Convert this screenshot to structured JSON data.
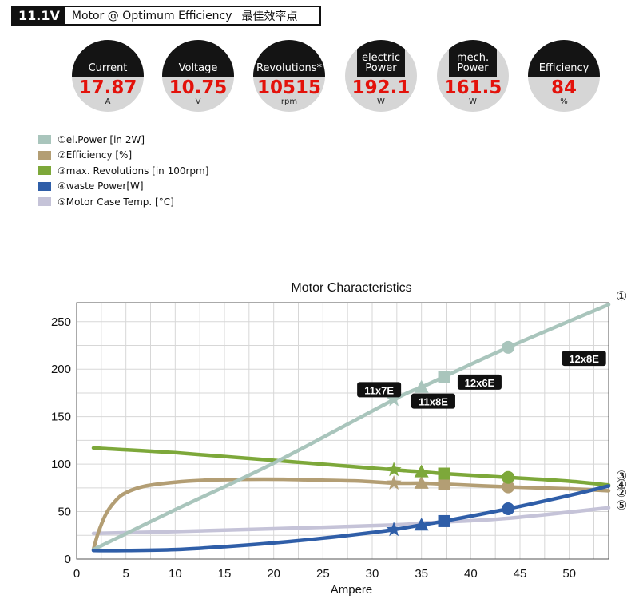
{
  "header": {
    "voltage": "11.1V",
    "title": "Motor @ Optimum Efficiency",
    "title_cn": "最佳效率点"
  },
  "gauges": [
    {
      "label": "Current",
      "value": "17.87",
      "unit": "A"
    },
    {
      "label": "Voltage",
      "value": "10.75",
      "unit": "V"
    },
    {
      "label": "Revolutions*",
      "value": "10515",
      "unit": "rpm"
    },
    {
      "label": "electric Power",
      "value": "192.1",
      "unit": "W"
    },
    {
      "label": "mech. Power",
      "value": "161.5",
      "unit": "W"
    },
    {
      "label": "Efficiency",
      "value": "84",
      "unit": "%"
    }
  ],
  "legend": [
    {
      "label": "①el.Power [in 2W]",
      "color": "#a9c5bc"
    },
    {
      "label": "②Efficiency [%]",
      "color": "#b39e74"
    },
    {
      "label": "③max. Revolutions [in 100rpm]",
      "color": "#7da83a"
    },
    {
      "label": "④waste Power[W]",
      "color": "#2f5ea8"
    },
    {
      "label": "⑤Motor Case Temp. [°C]",
      "color": "#c5c3d8"
    }
  ],
  "chart_data": {
    "type": "line",
    "title": "Motor Characteristics",
    "xlabel": "Ampere",
    "ylabel": "",
    "xlim": [
      0,
      54
    ],
    "ylim": [
      0,
      270
    ],
    "xticks": [
      0,
      5,
      10,
      15,
      20,
      25,
      30,
      35,
      40,
      45,
      50
    ],
    "yticks": [
      0,
      50,
      100,
      150,
      200,
      250
    ],
    "grid": true,
    "series": [
      {
        "name": "①el.Power [in 2W]",
        "end_label": "①",
        "color": "#a9c5bc",
        "x": [
          1.7,
          10,
          20,
          32.2,
          35,
          37.3,
          43.8,
          54
        ],
        "y": [
          10,
          52,
          101,
          168,
          181,
          192,
          223,
          268
        ]
      },
      {
        "name": "②Efficiency [%]",
        "end_label": "②",
        "color": "#b39e74",
        "x": [
          1.7,
          2.2,
          3,
          4,
          5,
          7,
          10,
          13,
          17,
          21,
          25,
          29,
          32.2,
          35,
          37.3,
          43.8,
          50,
          54
        ],
        "y": [
          10,
          28,
          48,
          62,
          70,
          77,
          81,
          83,
          84,
          84,
          83,
          82,
          80,
          80,
          79,
          76,
          74,
          72
        ]
      },
      {
        "name": "③max. Revolutions [in 100rpm]",
        "end_label": "③",
        "color": "#7da83a",
        "x": [
          1.7,
          10,
          20,
          32.2,
          35,
          37.3,
          43.8,
          50,
          54
        ],
        "y": [
          117,
          112,
          104,
          94,
          92,
          90,
          86,
          82,
          78
        ]
      },
      {
        "name": "④waste Power[W]",
        "end_label": "④",
        "color": "#2f5ea8",
        "x": [
          1.7,
          5,
          10,
          15,
          20,
          25,
          30,
          32.2,
          35,
          37.3,
          43.8,
          50,
          54
        ],
        "y": [
          9,
          9,
          10,
          13,
          17,
          22,
          28,
          31,
          36,
          40,
          53,
          67,
          77
        ]
      },
      {
        "name": "⑤Motor Case Temp. [°C]",
        "end_label": "⑤",
        "color": "#c5c3d8",
        "x": [
          1.7,
          10,
          20,
          32.2,
          35,
          37.3,
          43.8,
          54
        ],
        "y": [
          27,
          29,
          32,
          36,
          38,
          39,
          43,
          54
        ]
      }
    ],
    "markers": [
      {
        "x": 32.2,
        "shape": "star",
        "values": [
          168,
          80,
          94,
          31
        ]
      },
      {
        "x": 35,
        "shape": "triangle",
        "values": [
          181,
          80,
          92,
          36
        ]
      },
      {
        "x": 37.3,
        "shape": "square",
        "values": [
          192,
          79,
          90,
          40
        ]
      },
      {
        "x": 43.8,
        "shape": "circle",
        "values": [
          223,
          76,
          86,
          53
        ]
      }
    ],
    "annotations": [
      {
        "text": "11x7E",
        "x": 30.7,
        "y": 178
      },
      {
        "text": "11x8E",
        "x": 36.2,
        "y": 166
      },
      {
        "text": "12x6E",
        "x": 40.9,
        "y": 186
      },
      {
        "text": "12x8E",
        "x": 51.5,
        "y": 211
      }
    ]
  }
}
